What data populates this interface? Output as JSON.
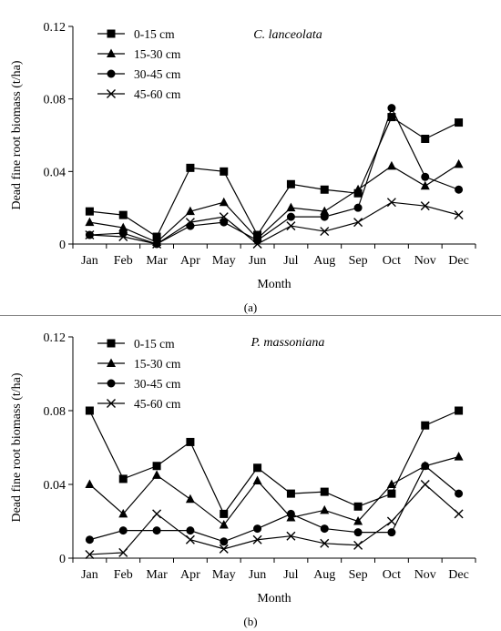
{
  "chart_data": [
    {
      "type": "line",
      "panel_label": "(a)",
      "annotation": "C. lanceolata",
      "title": "",
      "xlabel": "Month",
      "ylabel": "Dead fine root biomass (t/ha)",
      "ylim": [
        0,
        0.12
      ],
      "yticks": [
        "0",
        "0.04",
        "0.08",
        "0.12"
      ],
      "categories": [
        "Jan",
        "Feb",
        "Mar",
        "Apr",
        "May",
        "Jun",
        "Jul",
        "Aug",
        "Sep",
        "Oct",
        "Nov",
        "Dec"
      ],
      "legend_position": "top-left",
      "grid": false,
      "series": [
        {
          "name": "0-15 cm",
          "marker": "square",
          "values": [
            0.018,
            0.016,
            0.004,
            0.042,
            0.04,
            0.005,
            0.033,
            0.03,
            0.028,
            0.07,
            0.058,
            0.067
          ]
        },
        {
          "name": "15-30 cm",
          "marker": "triangle",
          "values": [
            0.012,
            0.009,
            0.001,
            0.018,
            0.023,
            0.003,
            0.02,
            0.018,
            0.03,
            0.043,
            0.032,
            0.044
          ]
        },
        {
          "name": "30-45 cm",
          "marker": "circle",
          "values": [
            0.005,
            0.006,
            0.0,
            0.01,
            0.012,
            0.002,
            0.015,
            0.015,
            0.02,
            0.075,
            0.037,
            0.03
          ]
        },
        {
          "name": "45-60 cm",
          "marker": "x",
          "values": [
            0.005,
            0.004,
            0.0,
            0.012,
            0.015,
            0.0,
            0.01,
            0.007,
            0.012,
            0.023,
            0.021,
            0.016
          ]
        }
      ]
    },
    {
      "type": "line",
      "panel_label": "(b)",
      "annotation": "P. massoniana",
      "title": "",
      "xlabel": "Month",
      "ylabel": "Dead fine root biomass (t/ha)",
      "ylim": [
        0,
        0.12
      ],
      "yticks": [
        "0",
        "0.04",
        "0.08",
        "0.12"
      ],
      "categories": [
        "Jan",
        "Feb",
        "Mar",
        "Apr",
        "May",
        "Jun",
        "Jul",
        "Aug",
        "Sep",
        "Oct",
        "Nov",
        "Dec"
      ],
      "legend_position": "top-left",
      "grid": false,
      "series": [
        {
          "name": "0-15 cm",
          "marker": "square",
          "values": [
            0.08,
            0.043,
            0.05,
            0.063,
            0.024,
            0.049,
            0.035,
            0.036,
            0.028,
            0.035,
            0.072,
            0.08
          ]
        },
        {
          "name": "15-30 cm",
          "marker": "triangle",
          "values": [
            0.04,
            0.024,
            0.045,
            0.032,
            0.018,
            0.042,
            0.022,
            0.026,
            0.02,
            0.04,
            0.05,
            0.055
          ]
        },
        {
          "name": "30-45 cm",
          "marker": "circle",
          "values": [
            0.01,
            0.015,
            0.015,
            0.015,
            0.009,
            0.016,
            0.024,
            0.016,
            0.014,
            0.014,
            0.05,
            0.035
          ]
        },
        {
          "name": "45-60 cm",
          "marker": "x",
          "values": [
            0.002,
            0.003,
            0.024,
            0.01,
            0.005,
            0.01,
            0.012,
            0.008,
            0.007,
            0.02,
            0.04,
            0.024
          ]
        }
      ]
    }
  ]
}
